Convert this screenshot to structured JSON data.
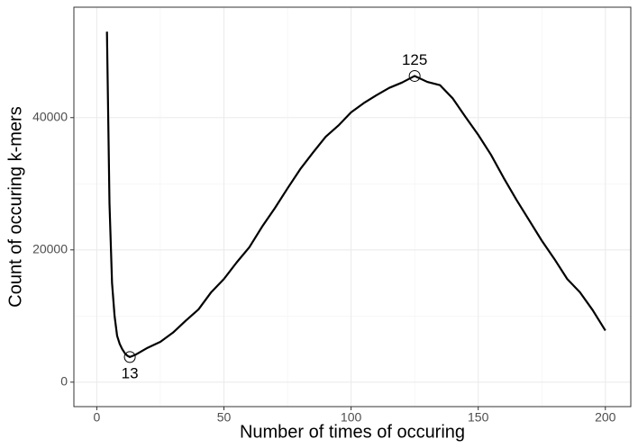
{
  "chart_data": {
    "type": "line",
    "x_label": "Number of times of occuring",
    "y_label": "Count of occuring k-mers",
    "x": [
      4,
      5,
      6,
      7,
      8,
      9,
      10,
      11,
      12,
      13,
      15,
      20,
      25,
      30,
      35,
      40,
      45,
      50,
      55,
      60,
      65,
      70,
      75,
      80,
      85,
      90,
      95,
      100,
      105,
      110,
      115,
      120,
      125,
      130,
      135,
      140,
      145,
      150,
      155,
      160,
      165,
      170,
      175,
      180,
      185,
      190,
      195,
      200
    ],
    "series": [
      {
        "name": "k-mers",
        "color": "#000000",
        "values": [
          53000,
          27000,
          15000,
          10000,
          7000,
          5800,
          5000,
          4400,
          4000,
          3800,
          4100,
          5200,
          6100,
          7500,
          9300,
          11000,
          13600,
          15600,
          18100,
          20400,
          23500,
          26300,
          29300,
          32200,
          34700,
          37100,
          38800,
          40800,
          42200,
          43400,
          44500,
          45300,
          46300,
          45400,
          44900,
          42900,
          40100,
          37400,
          34400,
          30900,
          27600,
          24500,
          21400,
          18600,
          15600,
          13600,
          10900,
          7800
        ]
      }
    ],
    "annotations": [
      {
        "x": 13,
        "y": 3800,
        "label": "13"
      },
      {
        "x": 125,
        "y": 46300,
        "label": "125"
      }
    ],
    "xlim": [
      -9,
      210
    ],
    "ylim": [
      -3700,
      56700
    ],
    "xticks": [
      0,
      50,
      100,
      150,
      200
    ],
    "yticks": [
      0,
      20000,
      40000
    ],
    "grid": true
  }
}
